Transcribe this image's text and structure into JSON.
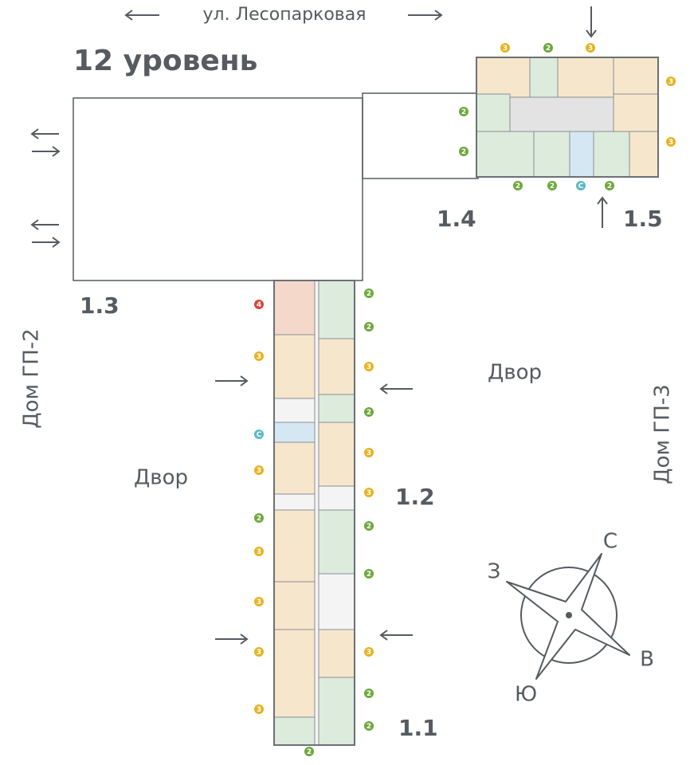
{
  "street": "ул. Лесопарковая",
  "level": "12 уровень",
  "sections": [
    "1.3",
    "1.4",
    "1.5",
    "1.2",
    "1.1"
  ],
  "houses": [
    "Дом ГП-2",
    "Дом ГП-3"
  ],
  "yards": [
    "Двор",
    "Двор"
  ],
  "compass": [
    "С",
    "З",
    "В",
    "Ю"
  ],
  "badges": [
    {
      "label": "3",
      "color": "#e6b31e"
    },
    {
      "label": "2",
      "color": "#6ea83c"
    },
    {
      "label": "3",
      "color": "#e6b31e"
    },
    {
      "label": "3",
      "color": "#e6b31e"
    },
    {
      "label": "3",
      "color": "#e6b31e"
    },
    {
      "label": "2",
      "color": "#6ea83c"
    },
    {
      "label": "2",
      "color": "#6ea83c"
    },
    {
      "label": "2",
      "color": "#6ea83c"
    },
    {
      "label": "2",
      "color": "#6ea83c"
    },
    {
      "label": "С",
      "color": "#5bb9c6"
    },
    {
      "label": "2",
      "color": "#6ea83c"
    },
    {
      "label": "4",
      "color": "#d8453a"
    },
    {
      "label": "3",
      "color": "#e6b31e"
    },
    {
      "label": "С",
      "color": "#5bb9c6"
    },
    {
      "label": "3",
      "color": "#e6b31e"
    },
    {
      "label": "2",
      "color": "#6ea83c"
    },
    {
      "label": "3",
      "color": "#e6b31e"
    },
    {
      "label": "3",
      "color": "#e6b31e"
    },
    {
      "label": "3",
      "color": "#e6b31e"
    },
    {
      "label": "3",
      "color": "#e6b31e"
    },
    {
      "label": "2",
      "color": "#6ea83c"
    },
    {
      "label": "2",
      "color": "#6ea83c"
    },
    {
      "label": "3",
      "color": "#e6b31e"
    },
    {
      "label": "2",
      "color": "#6ea83c"
    },
    {
      "label": "3",
      "color": "#e6b31e"
    },
    {
      "label": "3",
      "color": "#e6b31e"
    },
    {
      "label": "2",
      "color": "#6ea83c"
    },
    {
      "label": "2",
      "color": "#6ea83c"
    },
    {
      "label": "3",
      "color": "#e6b31e"
    },
    {
      "label": "2",
      "color": "#6ea83c"
    },
    {
      "label": "2",
      "color": "#6ea83c"
    },
    {
      "label": "2",
      "color": "#6ea83c"
    }
  ]
}
